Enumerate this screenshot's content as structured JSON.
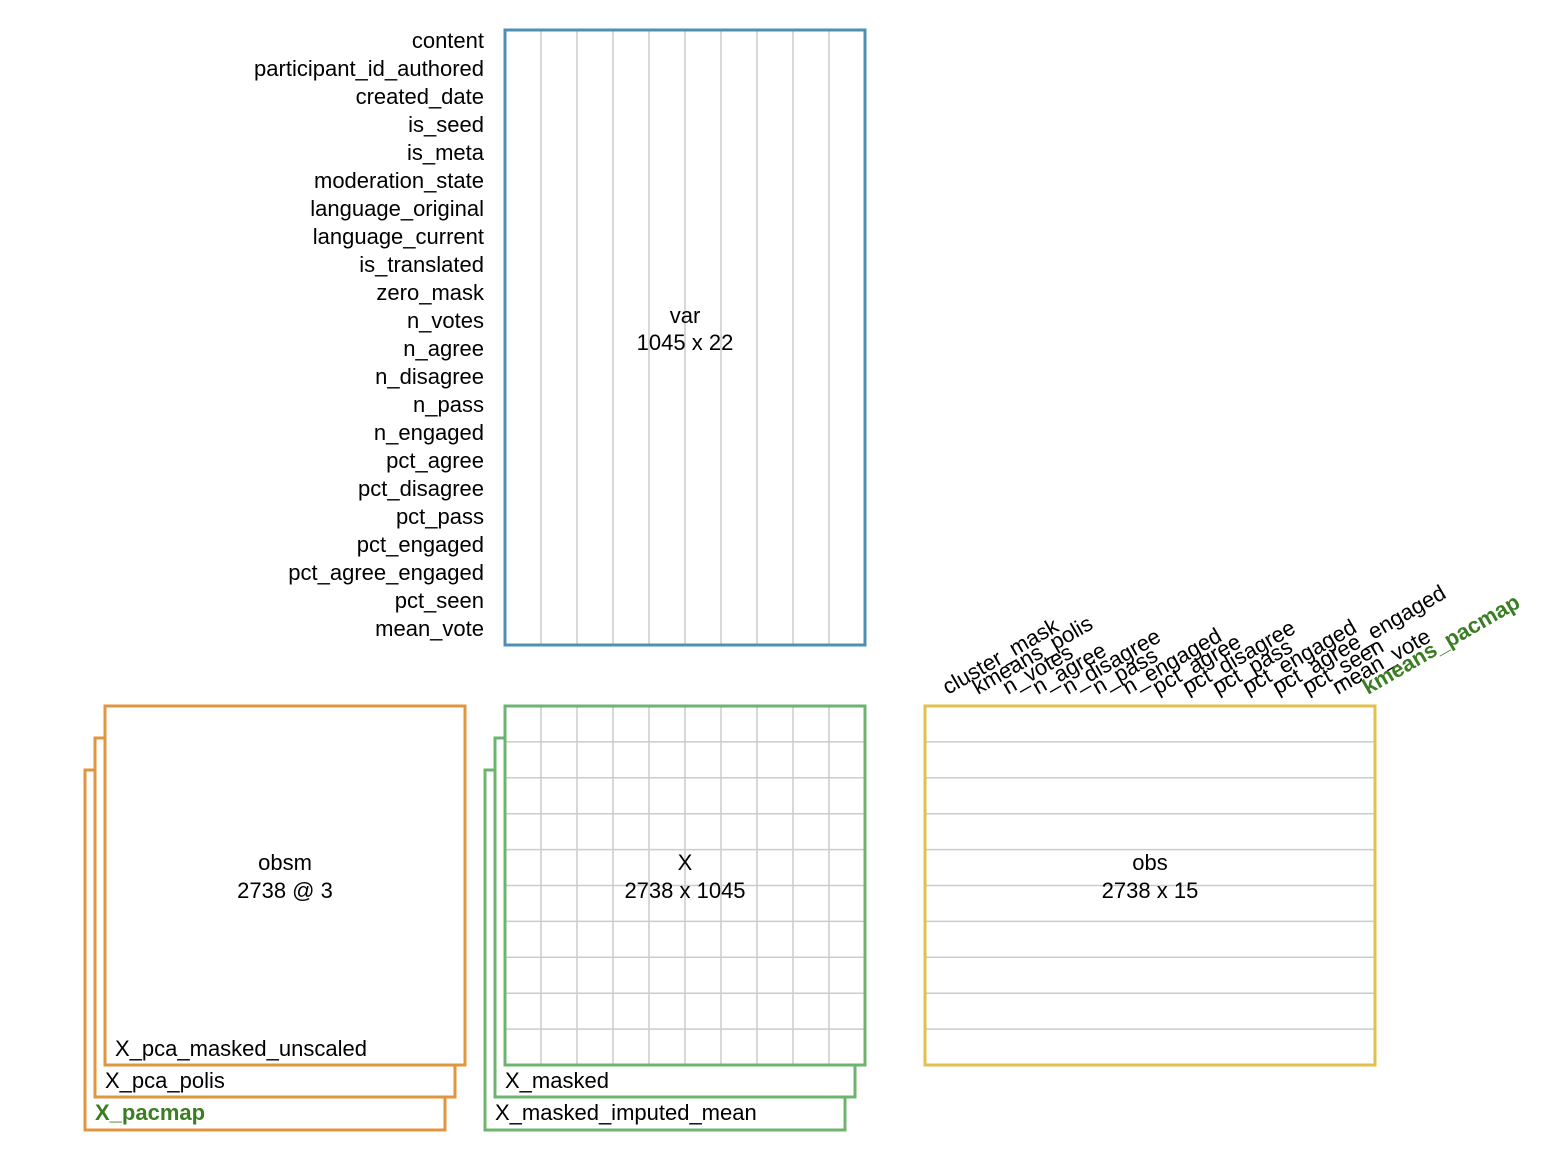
{
  "var": {
    "label": "var",
    "shape": "1045 x 22",
    "columns": [
      "content",
      "participant_id_authored",
      "created_date",
      "is_seed",
      "is_meta",
      "moderation_state",
      "language_original",
      "language_current",
      "is_translated",
      "zero_mask",
      "n_votes",
      "n_agree",
      "n_disagree",
      "n_pass",
      "n_engaged",
      "pct_agree",
      "pct_disagree",
      "pct_pass",
      "pct_engaged",
      "pct_agree_engaged",
      "pct_seen",
      "mean_vote"
    ]
  },
  "X": {
    "label": "X",
    "shape": "2738 x 1045",
    "layers": [
      "X_masked",
      "X_masked_imputed_mean"
    ]
  },
  "obsm": {
    "label": "obsm",
    "shape": "2738 @ 3",
    "keys": [
      "X_pca_masked_unscaled",
      "X_pca_polis",
      "X_pacmap"
    ]
  },
  "obs": {
    "label": "obs",
    "shape": "2738 x 15",
    "columns": [
      "cluster_mask",
      "kmeans_polis",
      "n_votes",
      "n_agree",
      "n_disagree",
      "n_pass",
      "n_engaged",
      "pct_agree",
      "pct_disagree",
      "pct_pass",
      "pct_engaged",
      "pct_agree_engaged",
      "pct_seen",
      "mean_vote",
      "kmeans_pacmap"
    ]
  }
}
